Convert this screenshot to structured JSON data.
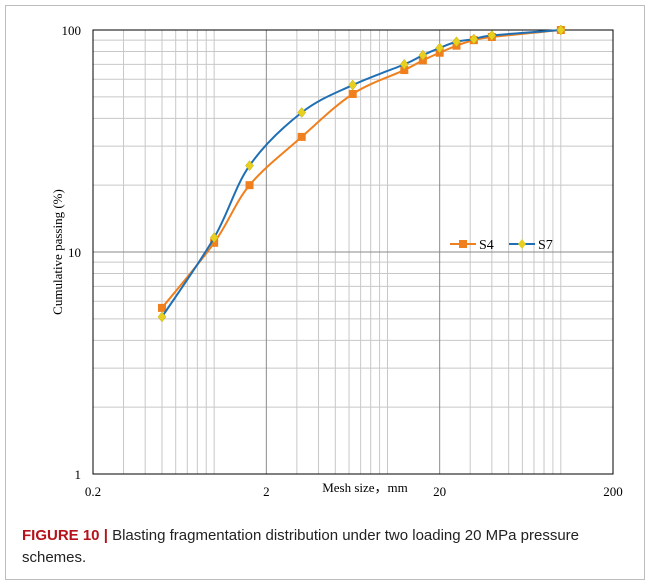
{
  "chart_data": {
    "type": "line",
    "xlabel": "Mesh size，mm",
    "ylabel": "Cumulative passing (%)",
    "x_scale": "log",
    "y_scale": "log",
    "xlim": [
      0.2,
      200
    ],
    "ylim": [
      1,
      100
    ],
    "x_ticks": [
      "0.2",
      "2",
      "20",
      "200"
    ],
    "y_ticks": [
      "1",
      "10",
      "100"
    ],
    "grid": true,
    "legend_position": "right-center",
    "series": [
      {
        "name": "S4",
        "color": "#f07f1d",
        "marker": "square",
        "x": [
          0.5,
          1.0,
          1.6,
          3.2,
          6.3,
          12.5,
          16,
          20,
          25,
          31.5,
          40,
          100
        ],
        "y": [
          5.6,
          11.0,
          20.0,
          33.0,
          51.5,
          66.0,
          73.0,
          79.0,
          85.0,
          90.0,
          93.0,
          100.0
        ]
      },
      {
        "name": "S7",
        "color": "#1f6fb5",
        "marker": "diamond",
        "x": [
          0.5,
          1.0,
          1.6,
          3.2,
          6.3,
          12.5,
          16,
          20,
          25,
          31.5,
          40,
          100
        ],
        "y": [
          5.1,
          11.6,
          24.5,
          42.5,
          56.5,
          70.0,
          77.0,
          83.0,
          88.5,
          91.0,
          94.5,
          100.0
        ]
      }
    ]
  },
  "caption": {
    "label": "FIGURE 10",
    "separator": "|",
    "text": " Blasting fragmentation distribution under two loading 20 MPa pressure schemes."
  }
}
